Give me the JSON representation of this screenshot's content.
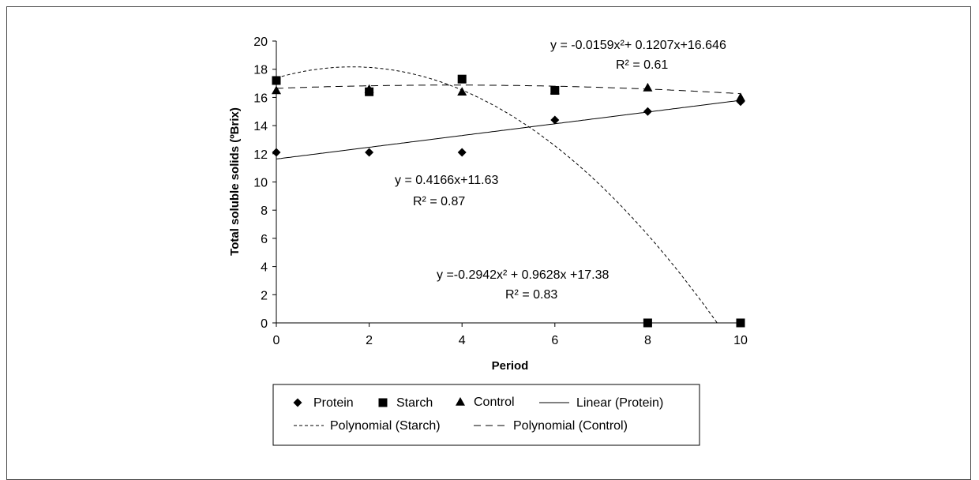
{
  "chart_data": {
    "type": "scatter",
    "title": "",
    "xlabel": "Period",
    "ylabel": "Total soluble solids (ºBrix)",
    "xlim": [
      0,
      10
    ],
    "ylim": [
      0,
      20
    ],
    "x_ticks": [
      "0",
      "2",
      "4",
      "6",
      "8",
      "10"
    ],
    "y_ticks": [
      "0",
      "2",
      "4",
      "6",
      "8",
      "10",
      "12",
      "14",
      "16",
      "18",
      "20"
    ],
    "grid": false,
    "legend_position": "bottom",
    "series": [
      {
        "name": "Protein",
        "marker": "diamond",
        "x": [
          0,
          2,
          4,
          6,
          8,
          10
        ],
        "y": [
          12.1,
          12.1,
          12.1,
          14.4,
          15.0,
          15.7
        ]
      },
      {
        "name": "Starch",
        "marker": "square",
        "x": [
          0,
          2,
          4,
          6,
          8,
          10
        ],
        "y": [
          17.2,
          16.4,
          17.3,
          16.5,
          0,
          0
        ]
      },
      {
        "name": "Control",
        "marker": "triangle",
        "x": [
          0,
          2,
          4,
          6,
          8,
          10
        ],
        "y": [
          16.5,
          16.6,
          16.4,
          16.5,
          16.7,
          16.0
        ]
      }
    ],
    "trendlines": [
      {
        "name": "Linear (Protein)",
        "type": "linear",
        "coef": [
          11.63,
          0.4166
        ],
        "dash": "solid"
      },
      {
        "name": "Polynomial (Starch)",
        "type": "poly2",
        "coef": [
          17.38,
          0.9628,
          -0.2942
        ],
        "dash": "short"
      },
      {
        "name": "Polynomial (Control)",
        "type": "poly2",
        "coef": [
          16.646,
          0.1207,
          -0.0159
        ],
        "dash": "long"
      }
    ],
    "annotations": {
      "control_eq": "y = -0.0159x²+ 0.1207x+16.646",
      "control_r2": "R² = 0.61",
      "protein_eq": "y = 0.4166x+11.63",
      "protein_r2": "R² = 0.87",
      "starch_eq": "y =-0.2942x² + 0.9628x +17.38",
      "starch_r2": "R² = 0.83"
    },
    "legend": [
      "Protein",
      "Starch",
      "Control",
      "Linear (Protein)",
      "Polynomial (Starch)",
      "Polynomial (Control)"
    ]
  }
}
